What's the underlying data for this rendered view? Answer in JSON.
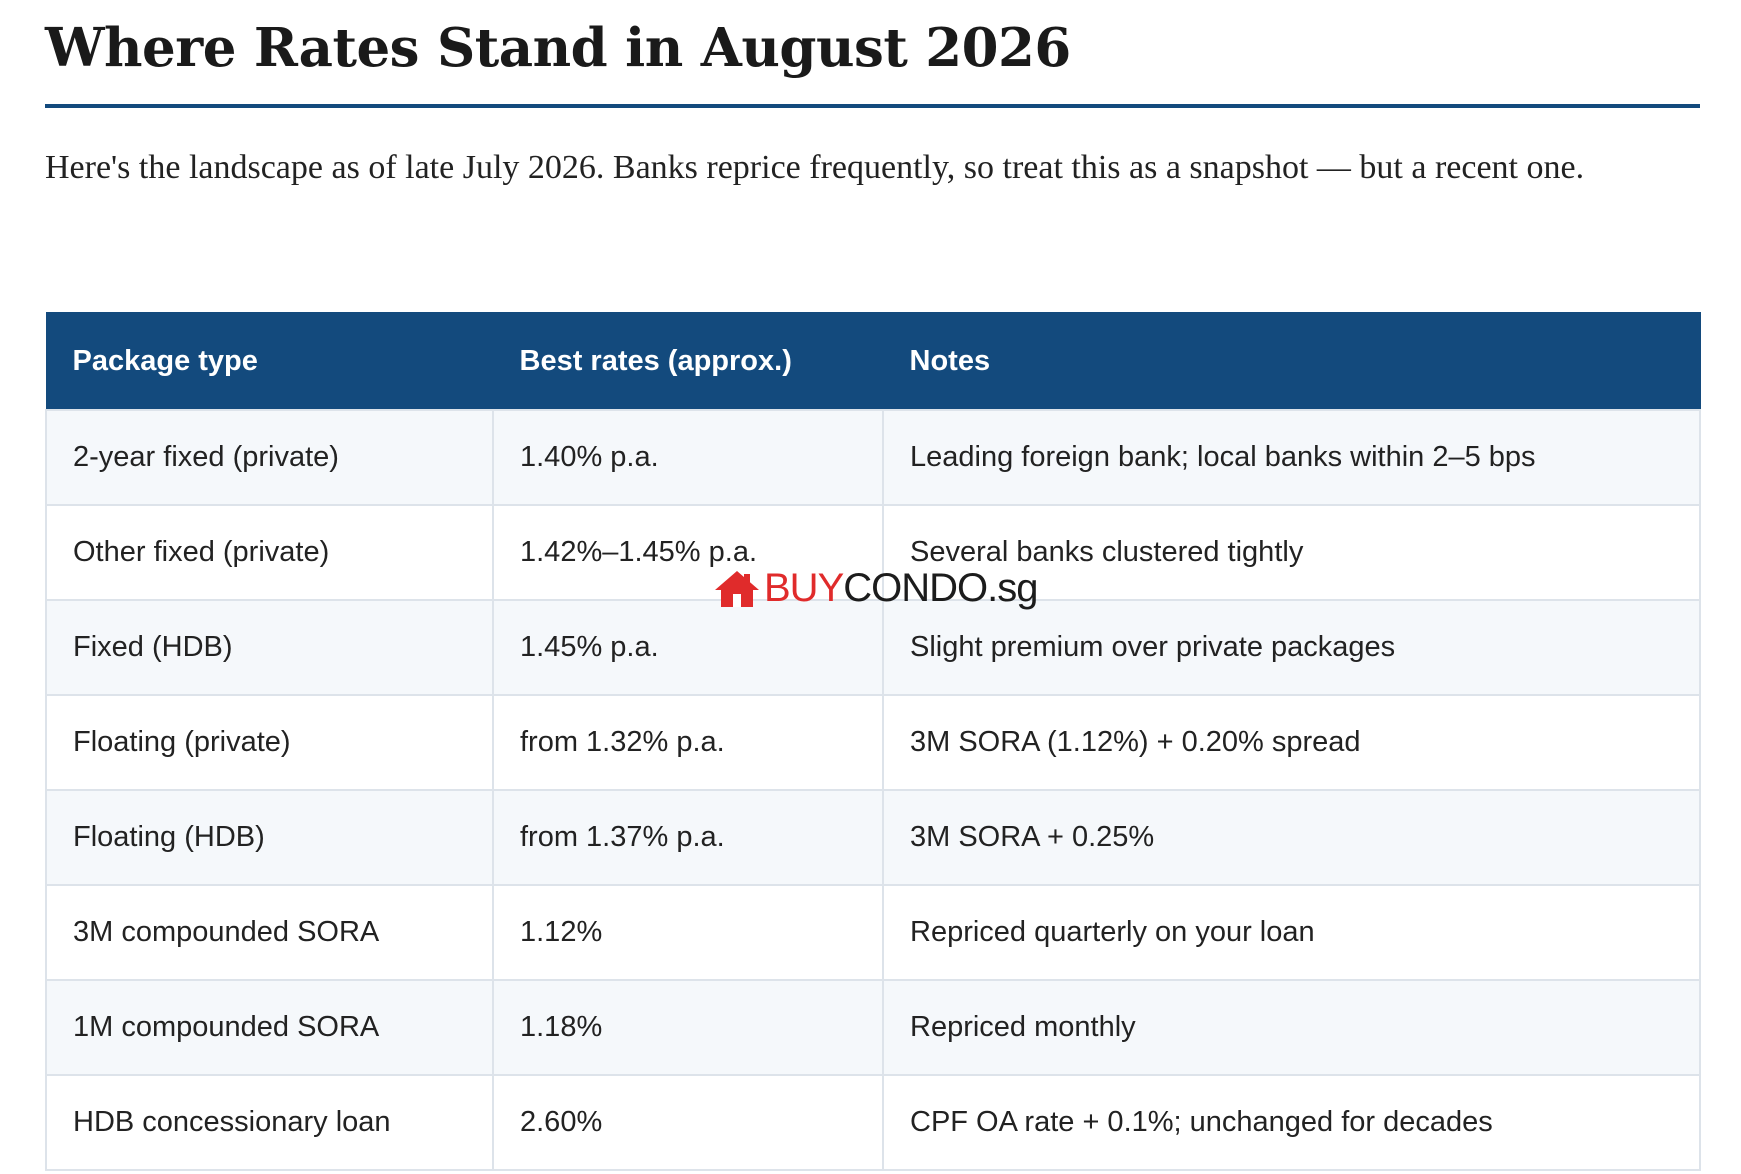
{
  "article": {
    "title": "Where Rates Stand in August 2026",
    "intro": "Here's the landscape as of late July 2026. Banks reprice frequently, so treat this as a snapshot — but a recent one."
  },
  "table": {
    "headers": [
      "Package type",
      "Best rates (approx.)",
      "Notes"
    ],
    "rows": [
      {
        "package": "2-year fixed (private)",
        "rate": "1.40% p.a.",
        "notes": "Leading foreign bank; local banks within 2–5 bps"
      },
      {
        "package": "Other fixed (private)",
        "rate": "1.42%–1.45% p.a.",
        "notes": "Several banks clustered tightly"
      },
      {
        "package": "Fixed (HDB)",
        "rate": "1.45% p.a.",
        "notes": "Slight premium over private packages"
      },
      {
        "package": "Floating (private)",
        "rate": "from 1.32% p.a.",
        "notes": "3M SORA (1.12%) + 0.20% spread"
      },
      {
        "package": "Floating (HDB)",
        "rate": "from 1.37% p.a.",
        "notes": "3M SORA + 0.25%"
      },
      {
        "package": "3M compounded SORA",
        "rate": "1.12%",
        "notes": "Repriced quarterly on your loan"
      },
      {
        "package": "1M compounded SORA",
        "rate": "1.18%",
        "notes": "Repriced monthly"
      },
      {
        "package": "HDB concessionary loan",
        "rate": "2.60%",
        "notes": "CPF OA rate + 0.1%; unchanged for decades"
      }
    ]
  },
  "watermark": {
    "icon": "house-icon",
    "part1": "BUY",
    "part2": "CONDO",
    "part3": ".sg",
    "accent_color": "#e02b2b"
  },
  "colors": {
    "header_bg": "#134a7d",
    "rule": "#134a7d",
    "row_alt_bg": "#f5f8fb",
    "border": "#dde3ea"
  }
}
